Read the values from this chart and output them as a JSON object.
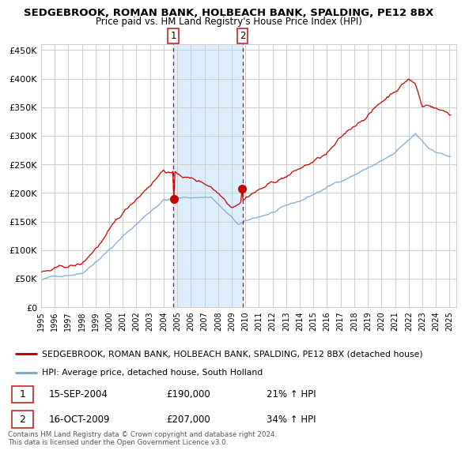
{
  "title": "SEDGEBROOK, ROMAN BANK, HOLBEACH BANK, SPALDING, PE12 8BX",
  "subtitle": "Price paid vs. HM Land Registry's House Price Index (HPI)",
  "legend_line1": "SEDGEBROOK, ROMAN BANK, HOLBEACH BANK, SPALDING, PE12 8BX (detached house)",
  "legend_line2": "HPI: Average price, detached house, South Holland",
  "transaction1_date": "15-SEP-2004",
  "transaction1_price": "£190,000",
  "transaction1_hpi": "21% ↑ HPI",
  "transaction2_date": "16-OCT-2009",
  "transaction2_price": "£207,000",
  "transaction2_hpi": "34% ↑ HPI",
  "footer": "Contains HM Land Registry data © Crown copyright and database right 2024.\nThis data is licensed under the Open Government Licence v3.0.",
  "ylim": [
    0,
    460000
  ],
  "yticks": [
    0,
    50000,
    100000,
    150000,
    200000,
    250000,
    300000,
    350000,
    400000,
    450000
  ],
  "ytick_labels": [
    "£0",
    "£50K",
    "£100K",
    "£150K",
    "£200K",
    "£250K",
    "£300K",
    "£350K",
    "£400K",
    "£450K"
  ],
  "bg_color": "#ffffff",
  "grid_color": "#cccccc",
  "red_line_color": "#cc0000",
  "blue_line_color": "#7aaadd",
  "shade_color": "#ddeeff",
  "dashed_line_color": "#cc0000",
  "marker_color": "#cc0000",
  "box_color": "#cc2222",
  "transaction1_x_year": 2004.71,
  "transaction2_x_year": 2009.79,
  "xmin": 1995,
  "xmax": 2025.5
}
